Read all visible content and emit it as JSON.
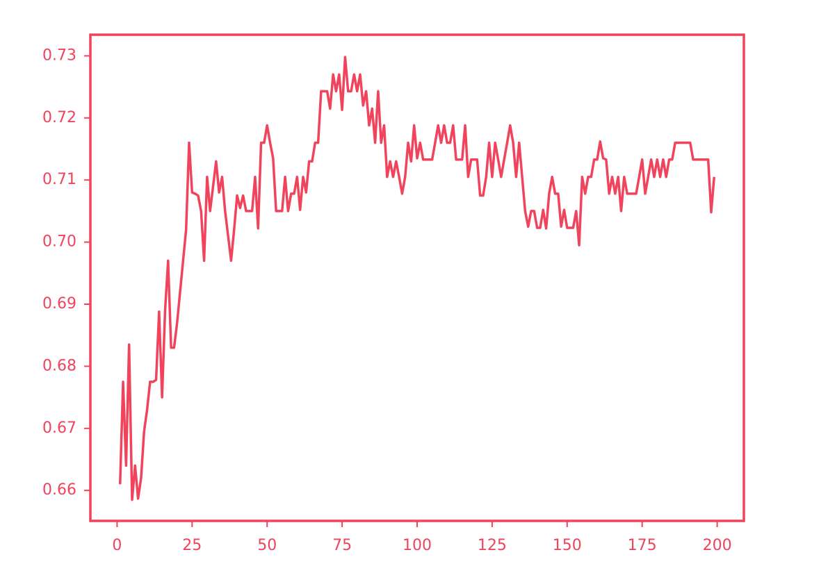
{
  "chart_data": {
    "type": "line",
    "color": "#f0435c",
    "x": [
      1,
      2,
      3,
      4,
      5,
      6,
      7,
      8,
      9,
      10,
      11,
      12,
      13,
      14,
      15,
      16,
      17,
      18,
      19,
      20,
      21,
      22,
      23,
      24,
      25,
      26,
      27,
      28,
      29,
      30,
      31,
      32,
      33,
      34,
      35,
      36,
      37,
      38,
      39,
      40,
      41,
      42,
      43,
      44,
      45,
      46,
      47,
      48,
      49,
      50,
      51,
      52,
      53,
      54,
      55,
      56,
      57,
      58,
      59,
      60,
      61,
      62,
      63,
      64,
      65,
      66,
      67,
      68,
      69,
      70,
      71,
      72,
      73,
      74,
      75,
      76,
      77,
      78,
      79,
      80,
      81,
      82,
      83,
      84,
      85,
      86,
      87,
      88,
      89,
      90,
      91,
      92,
      93,
      94,
      95,
      96,
      97,
      98,
      99,
      100,
      101,
      102,
      103,
      104,
      105,
      106,
      107,
      108,
      109,
      110,
      111,
      112,
      113,
      114,
      115,
      116,
      117,
      118,
      119,
      120,
      121,
      122,
      123,
      124,
      125,
      126,
      127,
      128,
      129,
      130,
      131,
      132,
      133,
      134,
      135,
      136,
      137,
      138,
      139,
      140,
      141,
      142,
      143,
      144,
      145,
      146,
      147,
      148,
      149,
      150,
      151,
      152,
      153,
      154,
      155,
      156,
      157,
      158,
      159,
      160,
      161,
      162,
      163,
      164,
      165,
      166,
      167,
      168,
      169,
      170,
      171,
      172,
      173,
      174,
      175,
      176,
      177,
      178,
      179,
      180,
      181,
      182,
      183,
      184,
      185,
      186,
      187,
      188,
      189,
      190,
      191,
      192,
      193,
      194,
      195,
      196,
      197,
      198,
      199
    ],
    "values": [
      0.661,
      0.6775,
      0.664,
      0.6835,
      0.6585,
      0.664,
      0.6587,
      0.662,
      0.6695,
      0.673,
      0.6775,
      0.6775,
      0.6778,
      0.6888,
      0.675,
      0.689,
      0.697,
      0.683,
      0.683,
      0.687,
      0.692,
      0.697,
      0.702,
      0.716,
      0.708,
      0.7078,
      0.7075,
      0.705,
      0.697,
      0.7105,
      0.705,
      0.709,
      0.713,
      0.708,
      0.7105,
      0.705,
      0.701,
      0.697,
      0.702,
      0.7075,
      0.7055,
      0.7075,
      0.705,
      0.705,
      0.705,
      0.7105,
      0.7022,
      0.716,
      0.716,
      0.7188,
      0.716,
      0.7135,
      0.705,
      0.705,
      0.705,
      0.7105,
      0.705,
      0.7078,
      0.7078,
      0.7105,
      0.7052,
      0.7105,
      0.708,
      0.713,
      0.713,
      0.716,
      0.716,
      0.7243,
      0.7243,
      0.7243,
      0.7215,
      0.727,
      0.7243,
      0.727,
      0.7213,
      0.7298,
      0.7243,
      0.7243,
      0.727,
      0.7243,
      0.727,
      0.722,
      0.7243,
      0.7188,
      0.7215,
      0.716,
      0.7243,
      0.716,
      0.7188,
      0.7105,
      0.713,
      0.7105,
      0.713,
      0.7105,
      0.7078,
      0.7105,
      0.716,
      0.713,
      0.7188,
      0.7135,
      0.716,
      0.7133,
      0.7133,
      0.7133,
      0.7133,
      0.716,
      0.7188,
      0.716,
      0.7188,
      0.716,
      0.716,
      0.7188,
      0.7133,
      0.7133,
      0.7133,
      0.7188,
      0.7105,
      0.7133,
      0.7133,
      0.7133,
      0.7075,
      0.7075,
      0.7105,
      0.716,
      0.7105,
      0.716,
      0.7133,
      0.7105,
      0.7133,
      0.716,
      0.7188,
      0.716,
      0.7105,
      0.716,
      0.7105,
      0.705,
      0.7025,
      0.705,
      0.705,
      0.7023,
      0.7023,
      0.7052,
      0.7022,
      0.7078,
      0.7105,
      0.7078,
      0.7078,
      0.7025,
      0.7052,
      0.7023,
      0.7023,
      0.7023,
      0.705,
      0.6995,
      0.7105,
      0.7078,
      0.7105,
      0.7105,
      0.7133,
      0.7133,
      0.7162,
      0.7135,
      0.7133,
      0.7078,
      0.7105,
      0.7078,
      0.7105,
      0.705,
      0.7105,
      0.7078,
      0.7078,
      0.7078,
      0.7078,
      0.7105,
      0.7133,
      0.7078,
      0.7105,
      0.7133,
      0.7105,
      0.7133,
      0.7105,
      0.7133,
      0.7105,
      0.7133,
      0.7133,
      0.716,
      0.716,
      0.716,
      0.716,
      0.716,
      0.716,
      0.7133,
      0.7133,
      0.7133,
      0.7133,
      0.7133,
      0.7133,
      0.7048,
      0.7105
    ],
    "xlim": [
      -8.9,
      208.9
    ],
    "xticks": [
      0,
      25,
      50,
      75,
      100,
      125,
      150,
      175,
      200
    ],
    "ylim": [
      0.6551,
      0.7334
    ],
    "yticks": [
      0.66,
      0.67,
      0.68,
      0.69,
      {
        "value": 0.7,
        "label": "0.70"
      },
      0.71,
      0.72,
      0.73
    ]
  }
}
